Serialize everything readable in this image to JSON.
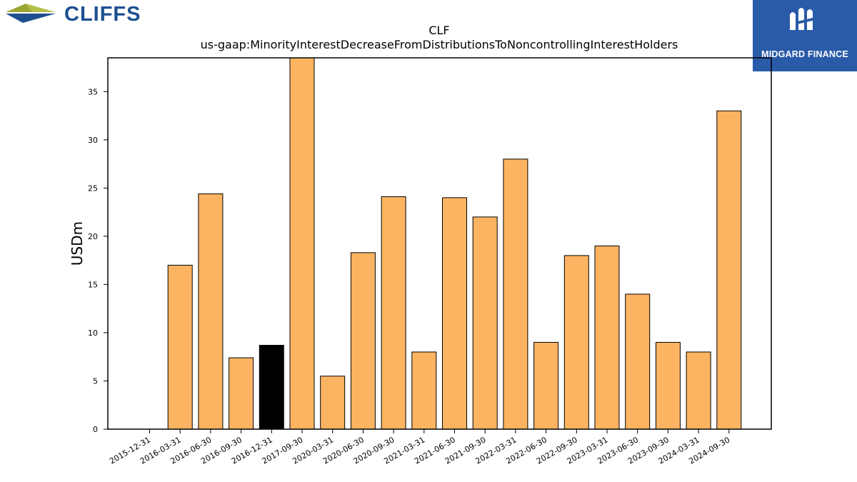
{
  "brand": {
    "company_logo_text": "CLIFFS",
    "company_logo_icon": "cliffs-chevron-logo",
    "partner_logo_text": "MIDGARD FINANCE",
    "partner_logo_icon": "midgard-m-logo",
    "company_blue": "#1d4f91",
    "company_green": "#9aa832",
    "partner_blue": "#2a5ba8"
  },
  "chart_data": {
    "type": "bar",
    "title": "CLF",
    "subtitle": "us-gaap:MinorityInterestDecreaseFromDistributionsToNoncontrollingInterestHolders",
    "xlabel": "",
    "ylabel": "USDm",
    "ylim": [
      0,
      38.5
    ],
    "yticks": [
      0,
      5,
      10,
      15,
      20,
      25,
      30,
      35
    ],
    "grid": false,
    "legend": "none",
    "bar_color": "#fdb462",
    "highlight_color": "#000000",
    "highlight_category": "2016-12-31",
    "categories": [
      "2015-12-31",
      "2016-03-31",
      "2016-06-30",
      "2016-09-30",
      "2016-12-31",
      "2017-09-30",
      "2020-03-31",
      "2020-06-30",
      "2020-09-30",
      "2021-03-31",
      "2021-06-30",
      "2021-09-30",
      "2022-03-31",
      "2022-06-30",
      "2022-09-30",
      "2023-03-31",
      "2023-06-30",
      "2023-09-30",
      "2024-03-31",
      "2024-09-30"
    ],
    "values": [
      0,
      17,
      24.4,
      7.4,
      8.7,
      38.5,
      5.5,
      18.3,
      24.1,
      8,
      24,
      22,
      28,
      9,
      18,
      19,
      14,
      9,
      8,
      33
    ]
  }
}
